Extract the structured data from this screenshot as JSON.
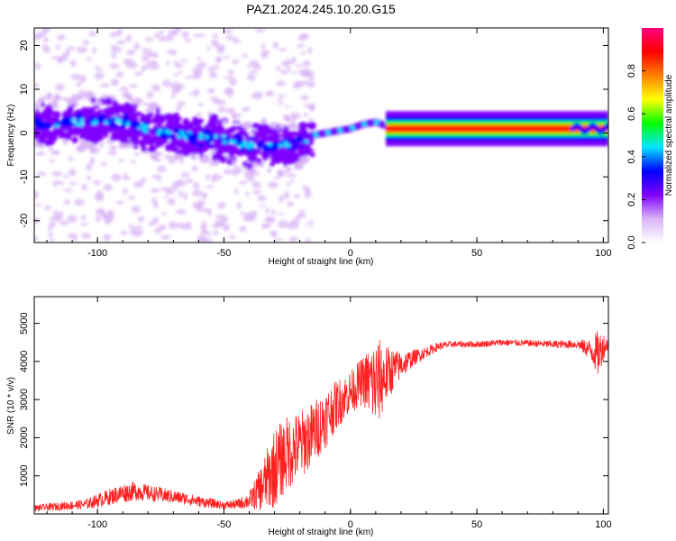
{
  "title": "PAZ1.2024.245.10.20.G15",
  "chart_data": [
    {
      "type": "heatmap",
      "xlabel": "Height of straight line (km)",
      "ylabel": "Frequency (Hz)",
      "xlim": [
        -125,
        102
      ],
      "ylim": [
        -25,
        24
      ],
      "xticks": [
        -100,
        -50,
        0,
        50,
        100
      ],
      "yticks": [
        -20,
        -10,
        0,
        10,
        20
      ],
      "colorbar": {
        "label": "Normalized spectral amplitude",
        "range": [
          0,
          1
        ],
        "ticks": [
          0.0,
          0.2,
          0.4,
          0.6,
          0.8
        ],
        "colors": [
          "#ffffff",
          "#d9b3f5",
          "#8000ff",
          "#0000ff",
          "#00e6ff",
          "#00ff00",
          "#ffff00",
          "#ff8000",
          "#ff0000",
          "#ff0080"
        ]
      },
      "ridge": [
        {
          "x": -120,
          "freq": 2.0
        },
        {
          "x": -110,
          "freq": 2.5
        },
        {
          "x": -100,
          "freq": 2.5
        },
        {
          "x": -90,
          "freq": 2.5
        },
        {
          "x": -80,
          "freq": 1.0
        },
        {
          "x": -70,
          "freq": 0.0
        },
        {
          "x": -60,
          "freq": -1.0
        },
        {
          "x": -50,
          "freq": -1.5
        },
        {
          "x": -40,
          "freq": -2.5
        },
        {
          "x": -30,
          "freq": -3.5
        },
        {
          "x": -20,
          "freq": -2.0
        },
        {
          "x": -15,
          "freq": -0.5
        },
        {
          "x": -10,
          "freq": 0.0
        },
        {
          "x": 0,
          "freq": 1.0
        },
        {
          "x": 5,
          "freq": 2.0
        },
        {
          "x": 10,
          "freq": 2.5
        },
        {
          "x": 15,
          "freq": 1.5
        },
        {
          "x": 20,
          "freq": 1.0
        },
        {
          "x": 50,
          "freq": 1.0
        },
        {
          "x": 90,
          "freq": 1.0
        },
        {
          "x": 100,
          "freq": 1.5
        }
      ]
    },
    {
      "type": "line",
      "xlabel": "Height of straight line (km)",
      "ylabel": "SNR (10 * v/v)",
      "xlim": [
        -125,
        102
      ],
      "ylim": [
        0,
        5700
      ],
      "xticks": [
        -100,
        -50,
        0,
        50,
        100
      ],
      "yticks": [
        1000,
        2000,
        3000,
        4000,
        5000
      ],
      "series": [
        {
          "color": "#ff2020",
          "x": [
            -125,
            -115,
            -105,
            -100,
            -95,
            -90,
            -85,
            -80,
            -75,
            -70,
            -65,
            -60,
            -55,
            -50,
            -45,
            -40,
            -35,
            -30,
            -25,
            -20,
            -15,
            -10,
            -5,
            0,
            5,
            10,
            15,
            20,
            25,
            30,
            35,
            40,
            50,
            60,
            70,
            80,
            90,
            95,
            98,
            100,
            102
          ],
          "y": [
            150,
            200,
            250,
            350,
            450,
            550,
            600,
            550,
            500,
            450,
            400,
            330,
            280,
            230,
            250,
            350,
            700,
            1200,
            1600,
            1800,
            2100,
            2500,
            2900,
            3200,
            3500,
            3400,
            3700,
            3900,
            4100,
            4250,
            4400,
            4450,
            4450,
            4500,
            4480,
            4450,
            4450,
            4300,
            4200,
            4400,
            4450
          ],
          "spread": [
            120,
            150,
            180,
            250,
            300,
            350,
            350,
            300,
            280,
            250,
            220,
            200,
            180,
            150,
            180,
            300,
            900,
            1500,
            1400,
            1300,
            1200,
            1100,
            900,
            800,
            900,
            1800,
            1000,
            500,
            300,
            200,
            150,
            120,
            120,
            120,
            120,
            140,
            160,
            400,
            900,
            500,
            200
          ]
        }
      ]
    }
  ]
}
